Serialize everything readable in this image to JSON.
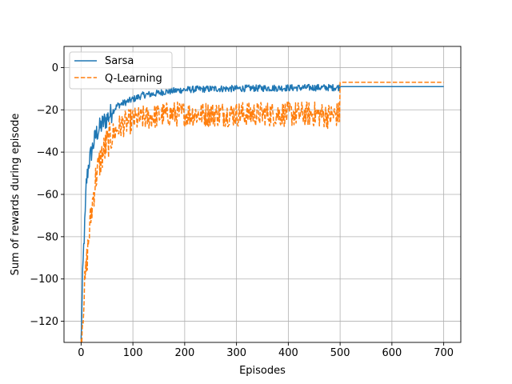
{
  "chart_data": {
    "type": "line",
    "title": "",
    "xlabel": "Episodes",
    "ylabel": "Sum of rewards during episode",
    "xlim": [
      -33,
      733
    ],
    "ylim": [
      -130,
      10
    ],
    "xticks": [
      0,
      100,
      200,
      300,
      400,
      500,
      600,
      700
    ],
    "yticks": [
      -120,
      -100,
      -80,
      -60,
      -40,
      -20,
      0
    ],
    "grid": true,
    "legend_position": "top-left",
    "series": [
      {
        "name": "Sarsa",
        "color": "#1f77b4",
        "style": "solid",
        "x": [
          0,
          3,
          5,
          8,
          10,
          15,
          20,
          25,
          30,
          40,
          50,
          60,
          70,
          80,
          90,
          100,
          120,
          140,
          160,
          180,
          200,
          220,
          240,
          260,
          280,
          300,
          320,
          340,
          360,
          380,
          400,
          420,
          440,
          460,
          480,
          499,
          500,
          700
        ],
        "y": [
          -130,
          -100,
          -85,
          -70,
          -55,
          -45,
          -40,
          -35,
          -31,
          -27,
          -24,
          -21,
          -18,
          -17,
          -16,
          -15,
          -13,
          -12.5,
          -11.5,
          -11,
          -10.5,
          -10.3,
          -10.2,
          -10,
          -10,
          -10,
          -9.8,
          -9.8,
          -9.7,
          -9.7,
          -9.6,
          -9.6,
          -9.5,
          -9.5,
          -9.5,
          -9.4,
          -9,
          -9
        ]
      },
      {
        "name": "Q-Learning",
        "color": "#ff7f0e",
        "style": "dashed",
        "x": [
          0,
          5,
          10,
          15,
          20,
          25,
          30,
          40,
          50,
          60,
          70,
          80,
          90,
          100,
          120,
          140,
          160,
          180,
          200,
          250,
          300,
          350,
          400,
          450,
          480,
          499,
          500,
          700
        ],
        "y": [
          -130,
          -110,
          -95,
          -80,
          -68,
          -58,
          -50,
          -42,
          -36,
          -32,
          -29,
          -27,
          -26,
          -25,
          -24,
          -23,
          -22.5,
          -22,
          -22,
          -22,
          -22,
          -22,
          -22,
          -22,
          -23,
          -22,
          -7,
          -7
        ]
      }
    ]
  }
}
